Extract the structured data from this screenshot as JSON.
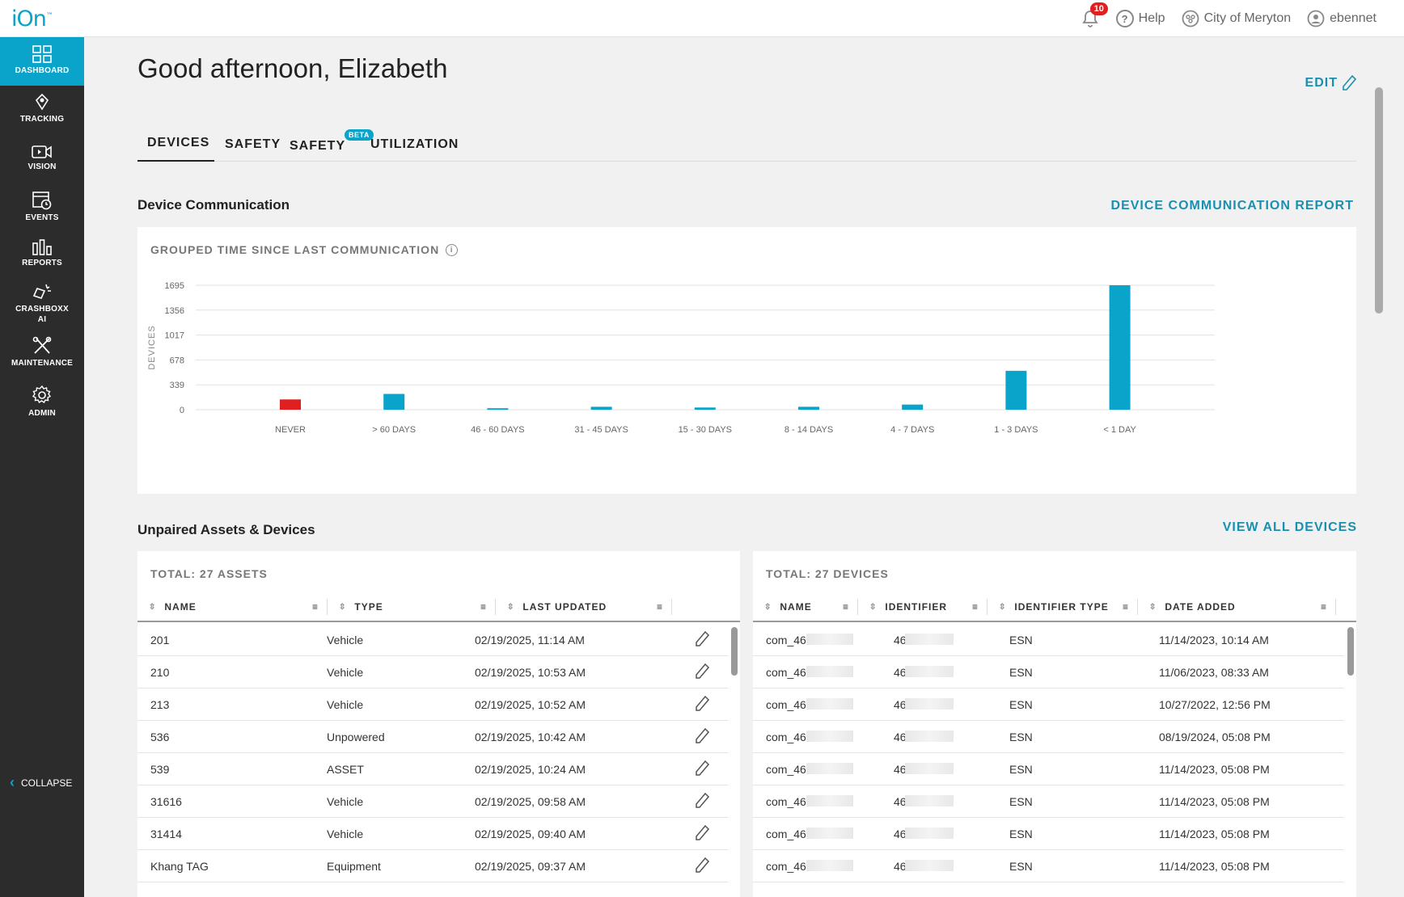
{
  "topbar": {
    "logo": "iOn",
    "logo_mark": "™",
    "notifications_count": "10",
    "help": "Help",
    "organization": "City of Meryton",
    "user": "ebennet"
  },
  "sidebar": {
    "items": [
      {
        "label": "DASHBOARD",
        "icon": "dashboard-icon"
      },
      {
        "label": "TRACKING",
        "icon": "map-pin-icon"
      },
      {
        "label": "VISION",
        "icon": "video-icon"
      },
      {
        "label": "EVENTS",
        "icon": "calendar-clock-icon"
      },
      {
        "label": "REPORTS",
        "icon": "bar-chart-icon"
      },
      {
        "label": "CRASHBOXX AI",
        "icon": "crash-icon"
      },
      {
        "label": "MAINTENANCE",
        "icon": "tools-icon"
      },
      {
        "label": "ADMIN",
        "icon": "gear-icon"
      }
    ],
    "collapse": "COLLAPSE"
  },
  "header": {
    "greeting": "Good afternoon, Elizabeth",
    "edit": "EDIT"
  },
  "tabs": [
    {
      "label": "DEVICES",
      "active": true
    },
    {
      "label": "SAFETY"
    },
    {
      "label": "SAFETY",
      "badge": "BETA"
    },
    {
      "label": "UTILIZATION"
    }
  ],
  "device_comm": {
    "title": "Device Communication",
    "report_link": "DEVICE COMMUNICATION REPORT",
    "card_title": "GROUPED TIME SINCE LAST COMMUNICATION"
  },
  "chart_data": {
    "type": "bar",
    "title": "GROUPED TIME SINCE LAST COMMUNICATION",
    "ylabel": "DEVICES",
    "xlabel": "",
    "yticks": [
      0,
      339,
      678,
      1017,
      1356,
      1695
    ],
    "ylim": [
      0,
      1695
    ],
    "categories": [
      "NEVER",
      "> 60 DAYS",
      "46 - 60 DAYS",
      "31 - 45 DAYS",
      "15 - 30 DAYS",
      "8 - 14 DAYS",
      "4 - 7 DAYS",
      "1 - 3 DAYS",
      "< 1 DAY"
    ],
    "values": [
      140,
      215,
      20,
      40,
      30,
      40,
      70,
      530,
      1695
    ],
    "colors": [
      "#e02020",
      "#0aa3c9",
      "#0aa3c9",
      "#0aa3c9",
      "#0aa3c9",
      "#0aa3c9",
      "#0aa3c9",
      "#0aa3c9",
      "#0aa3c9"
    ],
    "grid": true
  },
  "unpaired": {
    "title": "Unpaired Assets & Devices",
    "view_all": "VIEW ALL DEVICES",
    "assets": {
      "total": "TOTAL: 27 ASSETS",
      "columns": [
        "NAME",
        "TYPE",
        "LAST UPDATED"
      ],
      "rows": [
        [
          "201",
          "Vehicle",
          "02/19/2025, 11:14 AM"
        ],
        [
          "210",
          "Vehicle",
          "02/19/2025, 10:53 AM"
        ],
        [
          "213",
          "Vehicle",
          "02/19/2025, 10:52 AM"
        ],
        [
          "536",
          "Unpowered",
          "02/19/2025, 10:42 AM"
        ],
        [
          "539",
          "ASSET",
          "02/19/2025, 10:24 AM"
        ],
        [
          "31616",
          "Vehicle",
          "02/19/2025, 09:58 AM"
        ],
        [
          "31414",
          "Vehicle",
          "02/19/2025, 09:40 AM"
        ],
        [
          "Khang TAG",
          "Equipment",
          "02/19/2025, 09:37 AM"
        ]
      ]
    },
    "devices": {
      "total": "TOTAL: 27 DEVICES",
      "columns": [
        "NAME",
        "IDENTIFIER",
        "IDENTIFIER TYPE",
        "DATE ADDED"
      ],
      "rows": [
        [
          "com_46",
          "46",
          "ESN",
          "11/14/2023, 10:14 AM"
        ],
        [
          "com_46",
          "46",
          "ESN",
          "11/06/2023, 08:33 AM"
        ],
        [
          "com_46",
          "46",
          "ESN",
          "10/27/2022, 12:56 PM"
        ],
        [
          "com_46",
          "46",
          "ESN",
          "08/19/2024, 05:08 PM"
        ],
        [
          "com_46",
          "46",
          "ESN",
          "11/14/2023, 05:08 PM"
        ],
        [
          "com_46",
          "46",
          "ESN",
          "11/14/2023, 05:08 PM"
        ],
        [
          "com_46",
          "46",
          "ESN",
          "11/14/2023, 05:08 PM"
        ],
        [
          "com_46",
          "46",
          "ESN",
          "11/14/2023, 05:08 PM"
        ]
      ]
    }
  }
}
